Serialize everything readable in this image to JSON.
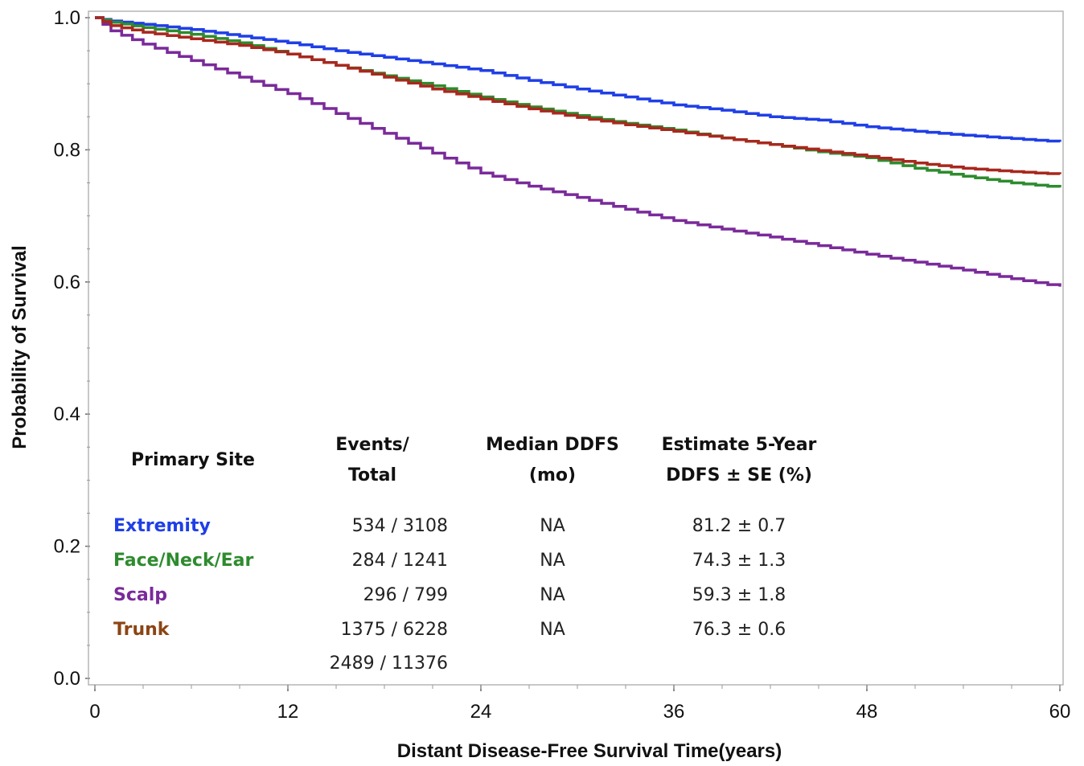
{
  "chart_data": {
    "type": "line",
    "step": true,
    "xlabel": "Distant Disease-Free Survival Time(years)",
    "ylabel": "Probability of Survival",
    "xlim": [
      0,
      60
    ],
    "ylim": [
      0,
      1.0
    ],
    "x_ticks": [
      "0",
      "12",
      "24",
      "36",
      "48",
      "60"
    ],
    "y_ticks": [
      "0.0",
      "0.2",
      "0.4",
      "0.6",
      "0.8",
      "1.0"
    ],
    "grid": false,
    "x": [
      0,
      1,
      3,
      6,
      9,
      12,
      15,
      18,
      21,
      24,
      27,
      30,
      33,
      36,
      39,
      42,
      45,
      48,
      51,
      54,
      57,
      60
    ],
    "series": [
      {
        "name": "Extremity",
        "color": "#1f3fe6",
        "values": [
          1.0,
          0.995,
          0.99,
          0.982,
          0.972,
          0.962,
          0.95,
          0.94,
          0.93,
          0.92,
          0.905,
          0.892,
          0.88,
          0.868,
          0.86,
          0.85,
          0.845,
          0.835,
          0.828,
          0.822,
          0.817,
          0.812
        ]
      },
      {
        "name": "Face/Neck/Ear",
        "color": "#2e8b2e",
        "values": [
          1.0,
          0.993,
          0.985,
          0.975,
          0.962,
          0.945,
          0.928,
          0.912,
          0.897,
          0.88,
          0.865,
          0.852,
          0.84,
          0.83,
          0.818,
          0.808,
          0.797,
          0.788,
          0.772,
          0.76,
          0.75,
          0.743
        ]
      },
      {
        "name": "Scalp",
        "color": "#7a2a9a",
        "values": [
          1.0,
          0.98,
          0.96,
          0.935,
          0.91,
          0.885,
          0.855,
          0.825,
          0.795,
          0.765,
          0.745,
          0.728,
          0.71,
          0.693,
          0.68,
          0.668,
          0.655,
          0.642,
          0.63,
          0.618,
          0.605,
          0.593
        ]
      },
      {
        "name": "Trunk",
        "color": "#a8281e",
        "values": [
          1.0,
          0.988,
          0.978,
          0.968,
          0.958,
          0.945,
          0.928,
          0.91,
          0.892,
          0.877,
          0.862,
          0.849,
          0.838,
          0.828,
          0.818,
          0.808,
          0.799,
          0.79,
          0.78,
          0.772,
          0.767,
          0.763
        ]
      }
    ]
  },
  "table": {
    "headers": {
      "site": "Primary Site",
      "events_1": "Events/",
      "events_2": "Total",
      "median_1": "Median DDFS",
      "median_2": "(mo)",
      "estimate_1": "Estimate 5-Year",
      "estimate_2": "DDFS ± SE (%)"
    },
    "rows": [
      {
        "site": "Extremity",
        "events": "534 / 3108",
        "median": "NA",
        "estimate": "81.2 ± 0.7",
        "color": "#1f3fe6"
      },
      {
        "site": "Face/Neck/Ear",
        "events": "284 / 1241",
        "median": "NA",
        "estimate": "74.3 ± 1.3",
        "color": "#2e8b2e"
      },
      {
        "site": "Scalp",
        "events": "296 / 799",
        "median": "NA",
        "estimate": "59.3 ± 1.8",
        "color": "#7a2a9a"
      },
      {
        "site": "Trunk",
        "events": "1375 / 6228",
        "median": "NA",
        "estimate": "76.3 ± 0.6",
        "color": "#8b4513"
      }
    ],
    "total": "2489 / 11376"
  }
}
